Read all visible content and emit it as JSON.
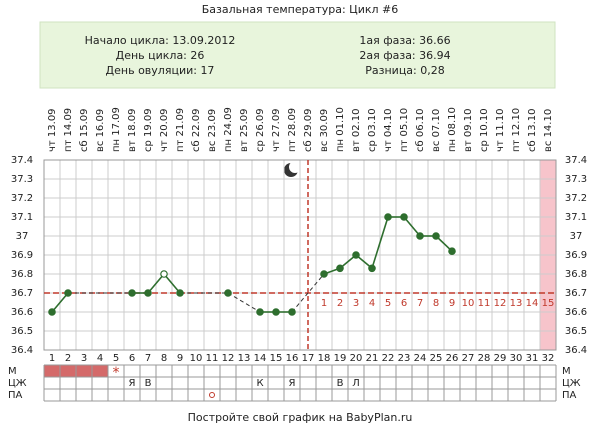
{
  "chart_data": {
    "type": "line",
    "title": "Базальная температура: Цикл #6",
    "info_left": [
      "Начало цикла: 13.09.2012",
      "День цикла: 26",
      "День овуляции: 17"
    ],
    "info_right": [
      "1ая фаза: 36.66",
      "2ая фаза: 36.94",
      "Разница: 0,28"
    ],
    "dates": [
      "чт 13.09",
      "пт 14.09",
      "сб 15.09",
      "вс 16.09",
      "пн 17.09",
      "вт 18.09",
      "ср 19.09",
      "чт 20.09",
      "пт 21.09",
      "сб 22.09",
      "вс 23.09",
      "пн 24.09",
      "вт 25.09",
      "ср 26.09",
      "чт 27.09",
      "пт 28.09",
      "сб 29.09",
      "вс 30.09",
      "пн 01.10",
      "вт 02.10",
      "ср 03.10",
      "чт 04.10",
      "пт 05.10",
      "сб 06.10",
      "вс 07.10",
      "пн 08.10",
      "вт 09.10",
      "ср 10.10",
      "чт 11.10",
      "пт 12.10",
      "сб 13.10",
      "вс 14.10"
    ],
    "categories": [
      1,
      2,
      3,
      4,
      5,
      6,
      7,
      8,
      9,
      10,
      11,
      12,
      13,
      14,
      15,
      16,
      17,
      18,
      19,
      20,
      21,
      22,
      23,
      24,
      25,
      26,
      27,
      28,
      29,
      30,
      31,
      32
    ],
    "values": [
      36.6,
      36.7,
      null,
      null,
      null,
      36.7,
      36.7,
      36.8,
      36.7,
      null,
      null,
      36.7,
      null,
      36.6,
      36.6,
      36.6,
      null,
      36.8,
      36.83,
      36.9,
      36.83,
      37.1,
      37.1,
      37.0,
      37.0,
      36.92,
      null,
      null,
      null,
      null,
      null,
      null
    ],
    "color": "#2e6e2e",
    "hollow_days": [
      8
    ],
    "ylim": [
      36.4,
      37.4
    ],
    "yticks": [
      36.4,
      36.5,
      36.6,
      36.7,
      36.8,
      36.9,
      37.0,
      37.1,
      37.2,
      37.3,
      37.4
    ],
    "grid": true,
    "coverline": 36.7,
    "ovulation_day": 17,
    "luteal_days": [
      1,
      2,
      3,
      4,
      5,
      6,
      7,
      8,
      9,
      10,
      11,
      12,
      13,
      14,
      15
    ],
    "highlight_day": 32,
    "row_labels": [
      "М",
      "ЦЖ",
      "ПА"
    ],
    "menses_days": [
      1,
      2,
      3,
      4
    ],
    "menses_mark": {
      "day": 5,
      "label": "*"
    },
    "mucus": [
      {
        "day": 6,
        "label": "Я"
      },
      {
        "day": 7,
        "label": "В"
      },
      {
        "day": 14,
        "label": "К"
      },
      {
        "day": 16,
        "label": "Я"
      },
      {
        "day": 19,
        "label": "В"
      },
      {
        "day": 20,
        "label": "Л"
      }
    ],
    "intercourse_days": [
      11
    ],
    "footer": "Постройте свой график на BabyPlan.ru"
  }
}
